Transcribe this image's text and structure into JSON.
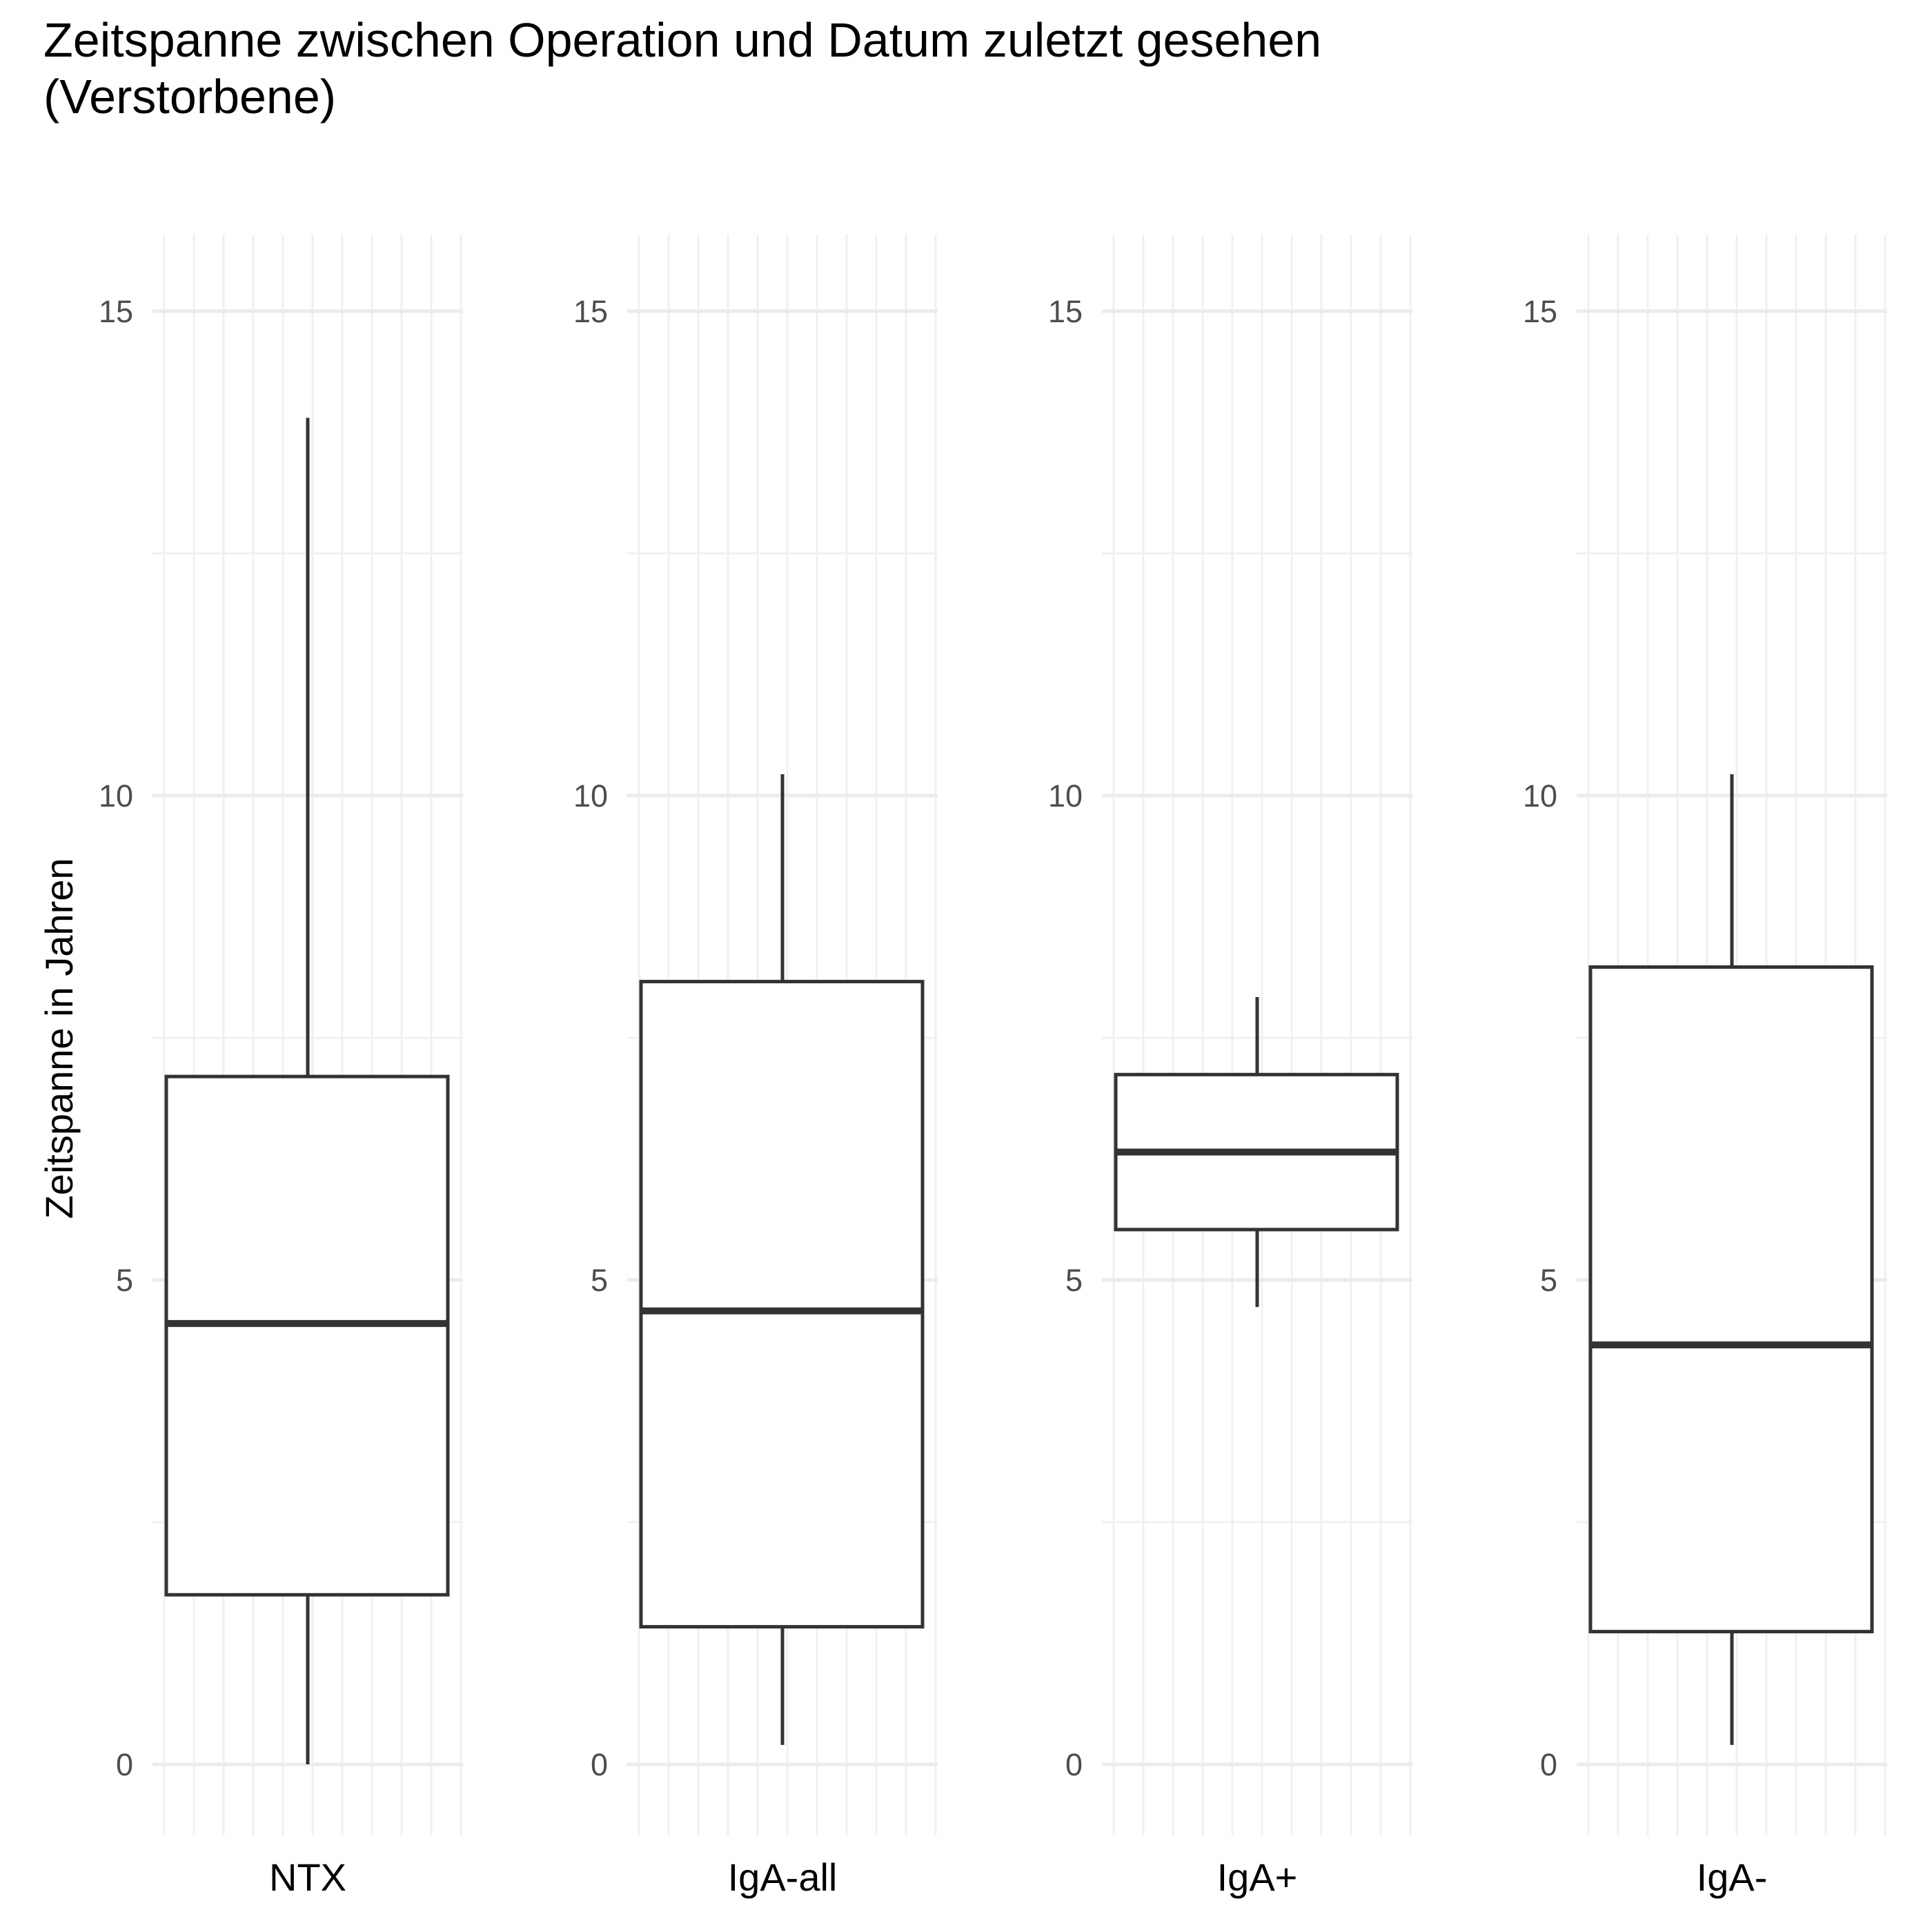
{
  "chart_data": {
    "type": "boxplot",
    "title_lines": [
      "Zeitspanne zwischen Operation und Datum zuletzt gesehen",
      "(Verstorbene)"
    ],
    "ylabel": "Zeitspanne in Jahren",
    "ylim": [
      -1.3,
      15.75
    ],
    "yticks": [
      0,
      5,
      10,
      15
    ],
    "grid": true,
    "facets": [
      {
        "category": "NTX",
        "min": 0.0,
        "q1": 1.75,
        "median": 4.55,
        "q3": 7.1,
        "max": 13.9
      },
      {
        "category": "IgA-all",
        "min": 0.2,
        "q1": 1.42,
        "median": 4.68,
        "q3": 8.08,
        "max": 10.22
      },
      {
        "category": "IgA+",
        "min": 4.72,
        "q1": 5.52,
        "median": 6.32,
        "q3": 7.12,
        "max": 7.92
      },
      {
        "category": "IgA-",
        "min": 0.2,
        "q1": 1.37,
        "median": 4.33,
        "q3": 8.23,
        "max": 10.22
      }
    ]
  }
}
